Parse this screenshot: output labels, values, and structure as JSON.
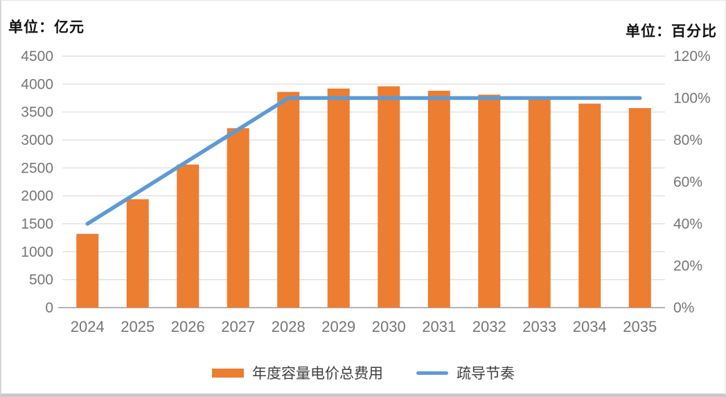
{
  "header": {
    "left_unit": "单位：亿元",
    "right_unit": "单位：百分比"
  },
  "colors": {
    "bar": "#ED7D31",
    "line": "#5B9BD5",
    "gridline": "#D9D9D9",
    "axis_line": "#A9A9A9",
    "tick_text": "#757575",
    "legend_text": "#3F3F3F"
  },
  "legend": [
    {
      "label": "年度容量电价总费用",
      "type": "bar",
      "color": "#ED7D31"
    },
    {
      "label": "疏导节奏",
      "type": "line",
      "color": "#5B9BD5"
    }
  ],
  "chart_data": {
    "type": "bar",
    "title": "",
    "categories": [
      "2024",
      "2025",
      "2026",
      "2027",
      "2028",
      "2029",
      "2030",
      "2031",
      "2032",
      "2033",
      "2034",
      "2035"
    ],
    "series": [
      {
        "name": "年度容量电价总费用",
        "type": "bar",
        "axis": "left",
        "color": "#ED7D31",
        "values": [
          1320,
          1940,
          2560,
          3210,
          3860,
          3920,
          3960,
          3880,
          3810,
          3720,
          3650,
          3570
        ]
      },
      {
        "name": "疏导节奏",
        "type": "line",
        "axis": "right",
        "color": "#5B9BD5",
        "values": [
          40,
          55,
          70,
          85,
          100,
          100,
          100,
          100,
          100,
          100,
          100,
          100
        ]
      }
    ],
    "y1": {
      "label": "单位：亿元",
      "min": 0,
      "max": 4500,
      "step": 500
    },
    "y2": {
      "label": "单位：百分比",
      "min": 0,
      "max": 120,
      "step": 20,
      "suffix": "%"
    },
    "grid": true,
    "legend_position": "bottom"
  }
}
